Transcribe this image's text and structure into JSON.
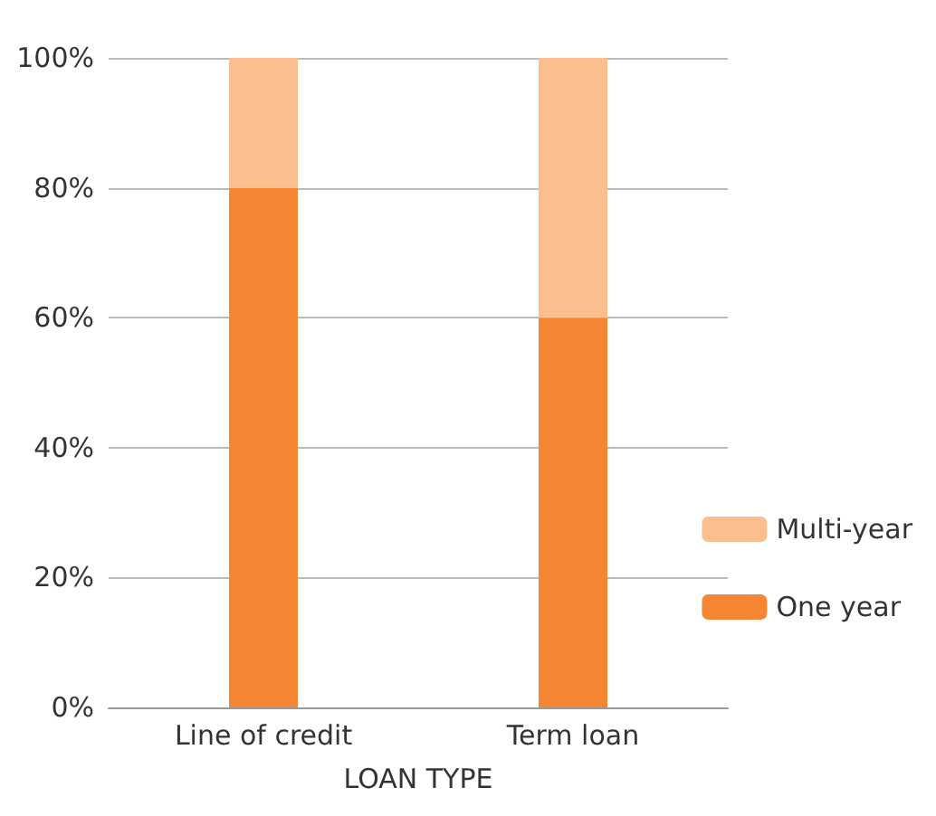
{
  "chart_data": {
    "type": "bar",
    "stacked": true,
    "xlabel": "LOAN TYPE",
    "categories": [
      "Line of credit",
      "Term loan"
    ],
    "series": [
      {
        "name": "One year",
        "color": "#f58634",
        "values": [
          80,
          60
        ]
      },
      {
        "name": "Multi-year",
        "color": "#fbbf8f",
        "values": [
          20,
          40
        ]
      }
    ],
    "ylim": [
      0,
      100
    ],
    "yticks": [
      {
        "value": 0,
        "label": "0%"
      },
      {
        "value": 20,
        "label": "20%"
      },
      {
        "value": 40,
        "label": "40%"
      },
      {
        "value": 60,
        "label": "60%"
      },
      {
        "value": 80,
        "label": "80%"
      },
      {
        "value": 100,
        "label": "100%"
      }
    ],
    "grid": "y",
    "legend": "right"
  }
}
